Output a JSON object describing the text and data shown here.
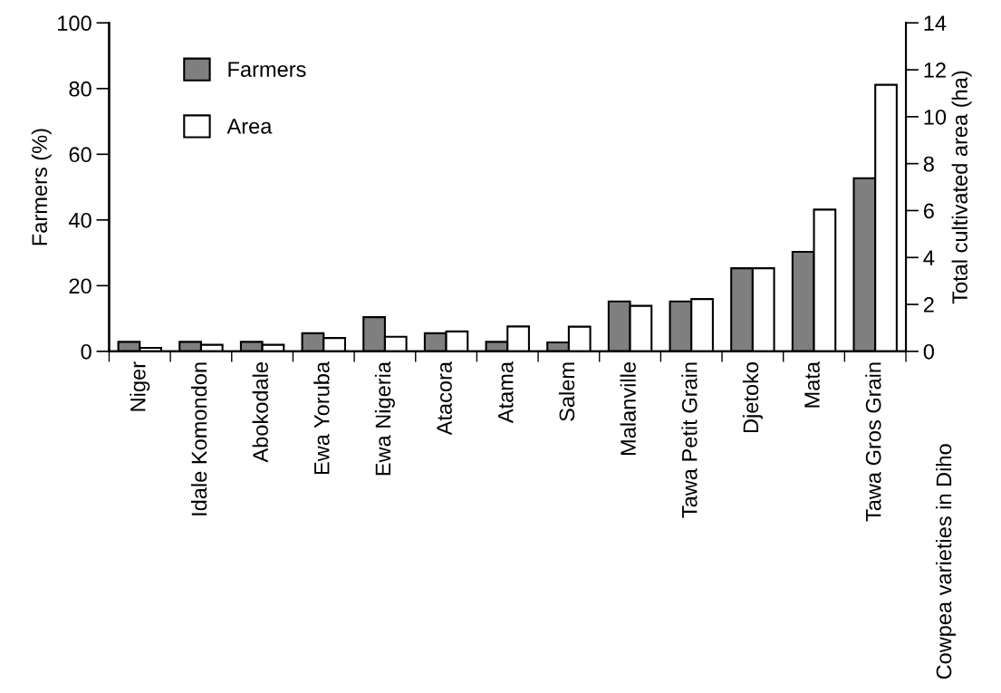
{
  "chart_data": {
    "type": "bar",
    "annotations": [
      "Cowpea varieties in Diho"
    ],
    "ylabel": "Farmers (%)",
    "y2label": "Total cultivated area (ha)",
    "categories": [
      "Niger",
      "Idale Komondon",
      "Abokodale",
      "Ewa Yoruba",
      "Ewa Nigeria",
      "Atacora",
      "Atama",
      "Salem",
      "Malanville",
      "Tawa Petit Grain",
      "Djetoko",
      "Mata",
      "Tawa Gros Grain"
    ],
    "series": [
      {
        "name": "Farmers",
        "color": "#7f7f7f",
        "values": [
          2.9,
          2.9,
          2.9,
          5.5,
          10.4,
          5.5,
          2.9,
          2.7,
          15.2,
          15.2,
          25.3,
          30.3,
          52.7
        ]
      },
      {
        "name": "Area",
        "color": "#ffffff",
        "axis": "y2",
        "values": [
          0.15,
          0.28,
          0.28,
          0.57,
          0.62,
          0.85,
          1.06,
          1.05,
          1.94,
          2.23,
          3.54,
          6.04,
          11.36
        ]
      }
    ],
    "ylim": [
      0,
      100
    ],
    "yticks": [
      0,
      20,
      40,
      60,
      80,
      100
    ],
    "y2lim": [
      0,
      14
    ],
    "y2ticks": [
      0,
      2,
      4,
      6,
      8,
      10,
      12,
      14
    ],
    "legend": "top left",
    "grid": false
  }
}
